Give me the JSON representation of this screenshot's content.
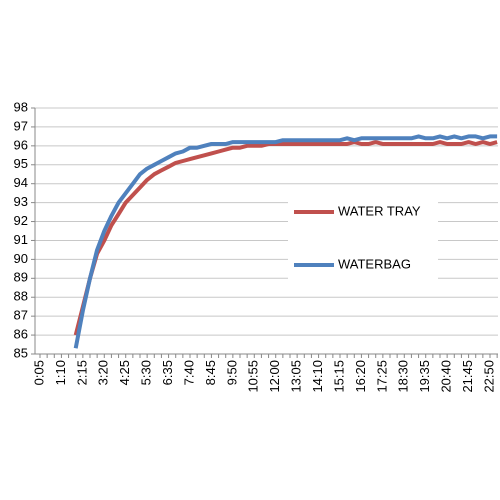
{
  "chart_data": {
    "type": "line",
    "categories": [
      "0:05",
      null,
      null,
      "1:10",
      null,
      null,
      "2:15",
      null,
      null,
      "3:20",
      null,
      null,
      "4:25",
      null,
      null,
      "5:30",
      null,
      null,
      "6:35",
      null,
      null,
      "7:40",
      null,
      null,
      "8:45",
      null,
      null,
      "9:50",
      null,
      null,
      "10:55",
      null,
      null,
      "12:00",
      null,
      null,
      "13:05",
      null,
      null,
      "14:10",
      null,
      null,
      "15:15",
      null,
      null,
      "16:20",
      null,
      null,
      "17:25",
      null,
      null,
      "18:30",
      null,
      null,
      "19:35",
      null,
      null,
      "20:40",
      null,
      null,
      "21:45",
      null,
      null,
      "22:50",
      null
    ],
    "series": [
      {
        "name": "WATER TRAY",
        "color": "#c0504d",
        "values": [
          null,
          null,
          null,
          null,
          null,
          86.0,
          87.5,
          89.0,
          90.3,
          91.0,
          91.8,
          92.4,
          93.0,
          93.4,
          93.8,
          94.2,
          94.5,
          94.7,
          94.9,
          95.1,
          95.2,
          95.3,
          95.4,
          95.5,
          95.6,
          95.7,
          95.8,
          95.9,
          95.9,
          96.0,
          96.0,
          96.0,
          96.1,
          96.1,
          96.1,
          96.1,
          96.1,
          96.1,
          96.1,
          96.1,
          96.1,
          96.1,
          96.1,
          96.1,
          96.2,
          96.1,
          96.1,
          96.2,
          96.1,
          96.1,
          96.1,
          96.1,
          96.1,
          96.1,
          96.1,
          96.1,
          96.2,
          96.1,
          96.1,
          96.1,
          96.2,
          96.1,
          96.2,
          96.1,
          96.2
        ]
      },
      {
        "name": "WATERBAG",
        "color": "#4f81bd",
        "values": [
          null,
          null,
          null,
          null,
          null,
          85.3,
          87.3,
          89.0,
          90.5,
          91.5,
          92.3,
          93.0,
          93.5,
          94.0,
          94.5,
          94.8,
          95.0,
          95.2,
          95.4,
          95.6,
          95.7,
          95.9,
          95.9,
          96.0,
          96.1,
          96.1,
          96.1,
          96.2,
          96.2,
          96.2,
          96.2,
          96.2,
          96.2,
          96.2,
          96.3,
          96.3,
          96.3,
          96.3,
          96.3,
          96.3,
          96.3,
          96.3,
          96.3,
          96.4,
          96.3,
          96.4,
          96.4,
          96.4,
          96.4,
          96.4,
          96.4,
          96.4,
          96.4,
          96.5,
          96.4,
          96.4,
          96.5,
          96.4,
          96.5,
          96.4,
          96.5,
          96.5,
          96.4,
          96.5,
          96.5
        ]
      }
    ],
    "ylim": [
      85,
      98
    ],
    "yticks": [
      85,
      86,
      87,
      88,
      89,
      90,
      91,
      92,
      93,
      94,
      95,
      96,
      97,
      98
    ],
    "grid": true
  }
}
